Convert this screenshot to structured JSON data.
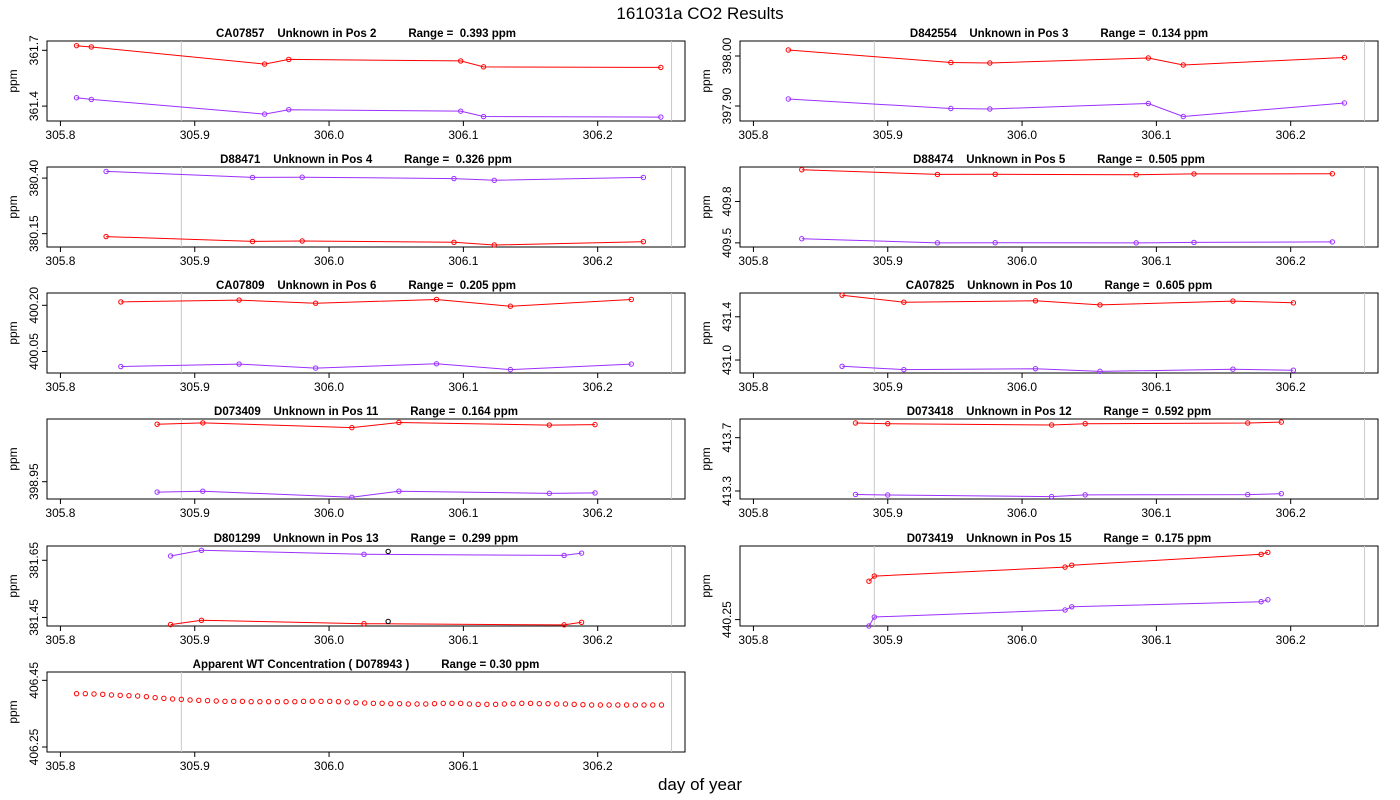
{
  "page": {
    "title": "161031a  CO2 Results",
    "xlabel": "day of year"
  },
  "chart_data": [
    {
      "type": "line",
      "title": "CA07857    Unknown in Pos 2          Range =  0.393 ppm",
      "ylabel": "ppm",
      "ylim": [
        361.32,
        361.75
      ],
      "xlim": [
        305.79,
        306.265
      ],
      "yticks": [
        361.4,
        361.7
      ],
      "yticklabels": [
        "361.4",
        "361.7"
      ],
      "xticks": [
        305.8,
        305.9,
        306.0,
        306.1,
        306.2
      ],
      "xticklabels": [
        "305.8",
        "305.9",
        "306.0",
        "306.1",
        "306.2"
      ],
      "vlines": [
        305.89,
        306.255
      ],
      "series": [
        {
          "name": "upper",
          "color": "#ff0000",
          "x": [
            305.812,
            305.823,
            305.952,
            305.97,
            306.098,
            306.115,
            306.247
          ],
          "y": [
            361.725,
            361.718,
            361.626,
            361.651,
            361.643,
            361.611,
            361.608
          ]
        },
        {
          "name": "lower",
          "color": "#9b30ff",
          "x": [
            305.812,
            305.823,
            305.952,
            305.97,
            306.098,
            306.115,
            306.247
          ],
          "y": [
            361.445,
            361.436,
            361.357,
            361.381,
            361.373,
            361.344,
            361.341
          ]
        }
      ]
    },
    {
      "type": "line",
      "title": "D842554    Unknown in Pos 3          Range =  0.134 ppm",
      "ylabel": "ppm",
      "ylim": [
        397.87,
        398.03
      ],
      "xlim": [
        305.79,
        306.265
      ],
      "yticks": [
        397.9,
        398.0
      ],
      "yticklabels": [
        "397.90",
        "398.00"
      ],
      "xticks": [
        305.8,
        305.9,
        306.0,
        306.1,
        306.2
      ],
      "xticklabels": [
        "305.8",
        "305.9",
        "306.0",
        "306.1",
        "306.2"
      ],
      "vlines": [
        305.89,
        306.255
      ],
      "series": [
        {
          "name": "upper",
          "color": "#ff0000",
          "x": [
            305.826,
            305.947,
            305.976,
            306.094,
            306.12,
            306.24
          ],
          "y": [
            398.012,
            397.987,
            397.986,
            397.996,
            397.982,
            397.997
          ]
        },
        {
          "name": "lower",
          "color": "#9b30ff",
          "x": [
            305.826,
            305.947,
            305.976,
            306.094,
            306.12,
            306.24
          ],
          "y": [
            397.914,
            397.895,
            397.894,
            397.905,
            397.879,
            397.906
          ]
        }
      ]
    },
    {
      "type": "line",
      "title": "D88471    Unknown in Pos 4          Range =  0.326 ppm",
      "ylabel": "ppm",
      "ylim": [
        380.09,
        380.45
      ],
      "xlim": [
        305.79,
        306.265
      ],
      "yticks": [
        380.15,
        380.4
      ],
      "yticklabels": [
        "380.15",
        "380.40"
      ],
      "xticks": [
        305.8,
        305.9,
        306.0,
        306.1,
        306.2
      ],
      "xticklabels": [
        "305.8",
        "305.9",
        "306.0",
        "306.1",
        "306.2"
      ],
      "vlines": [
        305.89,
        306.255
      ],
      "series": [
        {
          "name": "upper",
          "color": "#9b30ff",
          "x": [
            305.834,
            305.943,
            305.98,
            306.093,
            306.123,
            306.234
          ],
          "y": [
            380.43,
            380.403,
            380.404,
            380.398,
            380.39,
            380.403
          ]
        },
        {
          "name": "lower",
          "color": "#ff0000",
          "x": [
            305.834,
            305.943,
            305.98,
            306.093,
            306.123,
            306.234
          ],
          "y": [
            380.137,
            380.115,
            380.117,
            380.111,
            380.099,
            380.114
          ]
        }
      ]
    },
    {
      "type": "line",
      "title": "D88474    Unknown in Pos 5          Range =  0.505 ppm",
      "ylabel": "ppm",
      "ylim": [
        409.47,
        410.05
      ],
      "xlim": [
        305.79,
        306.265
      ],
      "yticks": [
        409.5,
        409.8
      ],
      "yticklabels": [
        "409.5",
        "409.8"
      ],
      "xticks": [
        305.8,
        305.9,
        306.0,
        306.1,
        306.2
      ],
      "xticklabels": [
        "305.8",
        "305.9",
        "306.0",
        "306.1",
        "306.2"
      ],
      "vlines": [
        305.89,
        306.255
      ],
      "series": [
        {
          "name": "upper",
          "color": "#ff0000",
          "x": [
            305.836,
            305.937,
            305.98,
            306.085,
            306.128,
            306.231
          ],
          "y": [
            410.03,
            409.996,
            409.997,
            409.994,
            410.0,
            410.001
          ]
        },
        {
          "name": "lower",
          "color": "#9b30ff",
          "x": [
            305.836,
            305.937,
            305.98,
            306.085,
            306.128,
            306.231
          ],
          "y": [
            409.53,
            409.5,
            409.501,
            409.5,
            409.503,
            409.507
          ]
        }
      ]
    },
    {
      "type": "line",
      "title": "CA07809    Unknown in Pos 6          Range =  0.205 ppm",
      "ylabel": "ppm",
      "ylim": [
        399.98,
        400.24
      ],
      "xlim": [
        305.79,
        306.265
      ],
      "yticks": [
        400.05,
        400.2
      ],
      "yticklabels": [
        "400.05",
        "400.20"
      ],
      "xticks": [
        305.8,
        305.9,
        306.0,
        306.1,
        306.2
      ],
      "xticklabels": [
        "305.8",
        "305.9",
        "306.0",
        "306.1",
        "306.2"
      ],
      "vlines": [
        305.89,
        306.255
      ],
      "series": [
        {
          "name": "upper",
          "color": "#ff0000",
          "x": [
            305.845,
            305.933,
            305.99,
            306.08,
            306.135,
            306.225
          ],
          "y": [
            400.211,
            400.217,
            400.207,
            400.219,
            400.197,
            400.219
          ]
        },
        {
          "name": "lower",
          "color": "#9b30ff",
          "x": [
            305.845,
            305.933,
            305.99,
            306.08,
            306.135,
            306.225
          ],
          "y": [
            400.001,
            400.009,
            399.996,
            400.01,
            399.991,
            400.009
          ]
        }
      ]
    },
    {
      "type": "line",
      "title": "CA07825    Unknown in Pos 10          Range =  0.605 ppm",
      "ylabel": "ppm",
      "ylim": [
        430.88,
        431.62
      ],
      "xlim": [
        305.79,
        306.265
      ],
      "yticks": [
        431.0,
        431.4
      ],
      "yticklabels": [
        "431.0",
        "431.4"
      ],
      "xticks": [
        305.8,
        305.9,
        306.0,
        306.1,
        306.2
      ],
      "xticklabels": [
        "305.8",
        "305.9",
        "306.0",
        "306.1",
        "306.2"
      ],
      "vlines": [
        305.89,
        306.255
      ],
      "series": [
        {
          "name": "upper",
          "color": "#ff0000",
          "x": [
            305.866,
            305.912,
            306.01,
            306.058,
            306.157,
            306.202
          ],
          "y": [
            431.6,
            431.535,
            431.548,
            431.51,
            431.545,
            431.529
          ]
        },
        {
          "name": "lower",
          "color": "#9b30ff",
          "x": [
            305.866,
            305.912,
            306.01,
            306.058,
            306.157,
            306.202
          ],
          "y": [
            430.942,
            430.911,
            430.92,
            430.895,
            430.915,
            430.906
          ]
        }
      ]
    },
    {
      "type": "line",
      "title": "D073409    Unknown in Pos 11          Range =  0.164 ppm",
      "ylabel": "ppm",
      "ylim": [
        398.91,
        399.095
      ],
      "xlim": [
        305.79,
        306.265
      ],
      "yticks": [
        398.95
      ],
      "yticklabels": [
        "398.95"
      ],
      "xticks": [
        305.8,
        305.9,
        306.0,
        306.1,
        306.2
      ],
      "xticklabels": [
        "305.8",
        "305.9",
        "306.0",
        "306.1",
        "306.2"
      ],
      "vlines": [
        305.89,
        306.255
      ],
      "series": [
        {
          "name": "upper",
          "color": "#ff0000",
          "x": [
            305.872,
            305.906,
            306.017,
            306.052,
            306.164,
            306.198
          ],
          "y": [
            399.083,
            399.086,
            399.075,
            399.087,
            399.081,
            399.082
          ]
        },
        {
          "name": "lower",
          "color": "#9b30ff",
          "x": [
            305.872,
            305.906,
            306.017,
            306.052,
            306.164,
            306.198
          ],
          "y": [
            398.926,
            398.928,
            398.914,
            398.928,
            398.923,
            398.924
          ]
        }
      ]
    },
    {
      "type": "line",
      "title": "D073418    Unknown in Pos 12          Range =  0.592 ppm",
      "ylabel": "ppm",
      "ylim": [
        413.24,
        413.84
      ],
      "xlim": [
        305.79,
        306.265
      ],
      "yticks": [
        413.3,
        413.7
      ],
      "yticklabels": [
        "413.3",
        "413.7"
      ],
      "xticks": [
        305.8,
        305.9,
        306.0,
        306.1,
        306.2
      ],
      "xticklabels": [
        "305.8",
        "305.9",
        "306.0",
        "306.1",
        "306.2"
      ],
      "vlines": [
        305.89,
        306.255
      ],
      "series": [
        {
          "name": "upper",
          "color": "#ff0000",
          "x": [
            305.876,
            305.9,
            306.022,
            306.047,
            306.168,
            306.193
          ],
          "y": [
            413.81,
            413.805,
            413.795,
            413.805,
            413.81,
            413.817
          ]
        },
        {
          "name": "lower",
          "color": "#9b30ff",
          "x": [
            305.876,
            305.9,
            306.022,
            306.047,
            306.168,
            306.193
          ],
          "y": [
            413.274,
            413.27,
            413.258,
            413.271,
            413.273,
            413.28
          ]
        }
      ]
    },
    {
      "type": "line",
      "title": "D801299    Unknown in Pos 13          Range =  0.299 ppm",
      "ylabel": "ppm",
      "ylim": [
        381.42,
        381.7
      ],
      "xlim": [
        305.79,
        306.265
      ],
      "yticks": [
        381.45,
        381.65
      ],
      "yticklabels": [
        "381.45",
        "381.65"
      ],
      "xticks": [
        305.8,
        305.9,
        306.0,
        306.1,
        306.2
      ],
      "xticklabels": [
        "305.8",
        "305.9",
        "306.0",
        "306.1",
        "306.2"
      ],
      "vlines": [
        305.89,
        306.255
      ],
      "series": [
        {
          "name": "upper",
          "color": "#9b30ff",
          "x": [
            305.882,
            305.905,
            306.026,
            306.175,
            306.188
          ],
          "y": [
            381.665,
            381.685,
            381.671,
            381.667,
            381.675
          ]
        },
        {
          "name": "lower",
          "color": "#ff0000",
          "x": [
            305.882,
            305.905,
            306.026,
            306.175,
            306.188
          ],
          "y": [
            381.425,
            381.44,
            381.428,
            381.424,
            381.433
          ]
        },
        {
          "name": "marker",
          "color": "#000000",
          "markers_only": true,
          "x": [
            306.044,
            306.044
          ],
          "y": [
            381.681,
            381.436
          ]
        }
      ]
    },
    {
      "type": "line",
      "title": "D073419    Unknown in Pos 15          Range =  0.175 ppm",
      "ylabel": "ppm",
      "ylim": [
        440.24,
        440.365
      ],
      "xlim": [
        305.79,
        306.265
      ],
      "yticks": [
        440.25
      ],
      "yticklabels": [
        "440.25"
      ],
      "xticks": [
        305.8,
        305.9,
        306.0,
        306.1,
        306.2
      ],
      "xticklabels": [
        "305.8",
        "305.9",
        "306.0",
        "306.1",
        "306.2"
      ],
      "vlines": [
        305.89,
        306.255
      ],
      "series": [
        {
          "name": "upper",
          "color": "#ff0000",
          "x": [
            305.886,
            305.89,
            306.032,
            306.037,
            306.178,
            306.183
          ],
          "y": [
            440.31,
            440.318,
            440.332,
            440.335,
            440.352,
            440.355
          ]
        },
        {
          "name": "lower",
          "color": "#9b30ff",
          "x": [
            305.886,
            305.89,
            306.032,
            306.037,
            306.178,
            306.183
          ],
          "y": [
            440.24,
            440.254,
            440.265,
            440.27,
            440.278,
            440.281
          ]
        }
      ]
    },
    {
      "type": "scatter",
      "title": "Apparent WT Concentration ( D078943 )          Range = 0.30 ppm",
      "ylabel": "ppm",
      "ylim": [
        406.235,
        406.475
      ],
      "xlim": [
        305.79,
        306.265
      ],
      "yticks": [
        406.25,
        406.45
      ],
      "yticklabels": [
        "406.25",
        "406.45"
      ],
      "xticks": [
        305.8,
        305.9,
        306.0,
        306.1,
        306.2
      ],
      "xticklabels": [
        "305.8",
        "305.9",
        "306.0",
        "306.1",
        "306.2"
      ],
      "vlines": [
        305.89,
        306.255
      ],
      "series": [
        {
          "name": "WT",
          "color": "#ff0000",
          "markers_only": true,
          "x": [
            305.812,
            305.8185,
            305.825,
            305.8315,
            305.838,
            305.8445,
            305.851,
            305.8575,
            305.864,
            305.8705,
            305.877,
            305.8835,
            305.89,
            305.8965,
            305.903,
            305.9095,
            305.916,
            305.9225,
            305.929,
            305.9355,
            305.942,
            305.9485,
            305.955,
            305.9615,
            305.968,
            305.9745,
            305.981,
            305.9875,
            305.994,
            306.0005,
            306.007,
            306.0135,
            306.02,
            306.0265,
            306.033,
            306.0395,
            306.046,
            306.0525,
            306.059,
            306.0655,
            306.072,
            306.0785,
            306.085,
            306.0915,
            306.098,
            306.1045,
            306.111,
            306.1175,
            306.124,
            306.1305,
            306.137,
            306.1435,
            306.15,
            306.1565,
            306.163,
            306.1695,
            306.176,
            306.1825,
            306.189,
            306.1955,
            306.202,
            306.2085,
            306.215,
            306.2215,
            306.228,
            306.2345,
            306.241,
            306.2475
          ],
          "y": [
            406.41,
            406.41,
            406.409,
            406.408,
            406.406,
            406.405,
            406.404,
            406.403,
            406.401,
            406.398,
            406.396,
            406.394,
            406.393,
            406.391,
            406.39,
            406.389,
            406.388,
            406.387,
            406.387,
            406.387,
            406.386,
            406.386,
            406.386,
            406.386,
            406.386,
            406.386,
            406.387,
            406.387,
            406.387,
            406.387,
            406.386,
            406.385,
            406.383,
            406.382,
            406.381,
            406.381,
            406.38,
            406.38,
            406.379,
            406.379,
            406.379,
            406.38,
            406.381,
            406.381,
            406.381,
            406.379,
            406.378,
            406.378,
            406.378,
            406.379,
            406.38,
            406.381,
            406.381,
            406.38,
            406.38,
            406.379,
            406.379,
            406.378,
            406.377,
            406.376,
            406.376,
            406.376,
            406.376,
            406.376,
            406.376,
            406.376,
            406.376,
            406.376
          ]
        }
      ]
    }
  ]
}
